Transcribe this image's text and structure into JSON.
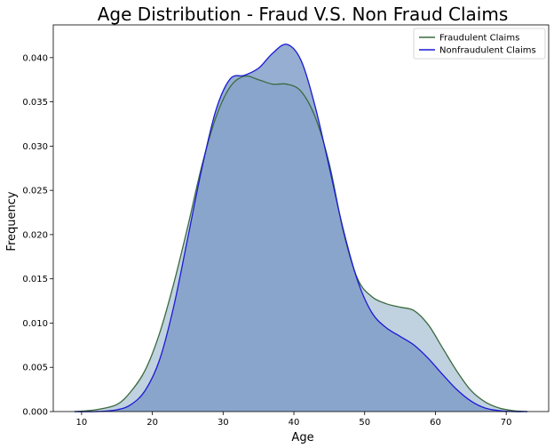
{
  "chart_data": {
    "type": "area",
    "title": "Age Distribution - Fraud V.S. Non Fraud Claims",
    "xlabel": "Age",
    "ylabel": "Frequency",
    "xlim": [
      6,
      76
    ],
    "ylim": [
      0,
      0.0437
    ],
    "xticks": [
      10,
      20,
      30,
      40,
      50,
      60,
      70
    ],
    "yticks": [
      0.0,
      0.005,
      0.01,
      0.015,
      0.02,
      0.025,
      0.03,
      0.035,
      0.04
    ],
    "ytick_labels": [
      "0.000",
      "0.005",
      "0.010",
      "0.015",
      "0.020",
      "0.025",
      "0.030",
      "0.035",
      "0.040"
    ],
    "grid": false,
    "legend_position": "top-right",
    "fill_color": "#8aa5cc",
    "series": [
      {
        "name": "Fraudulent Claims",
        "color": "#3a6b3f",
        "fill": "#b9ccdd",
        "x": [
          9,
          12,
          15,
          17,
          19,
          21,
          23,
          25,
          27,
          29,
          31,
          33,
          35,
          37,
          39,
          41,
          43,
          45,
          47,
          49,
          51,
          53,
          55,
          57,
          59,
          61,
          63,
          65,
          67,
          69,
          71,
          73
        ],
        "y": [
          0.0,
          0.0002,
          0.0008,
          0.0023,
          0.0047,
          0.0088,
          0.0144,
          0.0209,
          0.0278,
          0.0333,
          0.0367,
          0.0379,
          0.0375,
          0.037,
          0.037,
          0.0362,
          0.0333,
          0.028,
          0.0203,
          0.015,
          0.013,
          0.0122,
          0.0118,
          0.0114,
          0.0098,
          0.0072,
          0.0046,
          0.0024,
          0.0011,
          0.0004,
          0.0001,
          0.0
        ]
      },
      {
        "name": "Nonfraudulent Claims",
        "color": "#1a1ad4",
        "fill": "#8aa5cc",
        "x": [
          9,
          12,
          15,
          17,
          19,
          21,
          23,
          25,
          27,
          29,
          31,
          33,
          35,
          37,
          39,
          41,
          43,
          45,
          47,
          49,
          51,
          53,
          55,
          57,
          59,
          61,
          63,
          65,
          67,
          69,
          71,
          73
        ],
        "y": [
          0.0,
          0.0,
          0.0002,
          0.0008,
          0.0024,
          0.0058,
          0.0118,
          0.0196,
          0.0275,
          0.0341,
          0.0376,
          0.038,
          0.0388,
          0.0405,
          0.0415,
          0.0397,
          0.0345,
          0.0276,
          0.0205,
          0.0148,
          0.0112,
          0.0095,
          0.0085,
          0.0075,
          0.006,
          0.0042,
          0.0025,
          0.0012,
          0.0004,
          0.0001,
          0.0,
          0.0
        ]
      }
    ]
  }
}
